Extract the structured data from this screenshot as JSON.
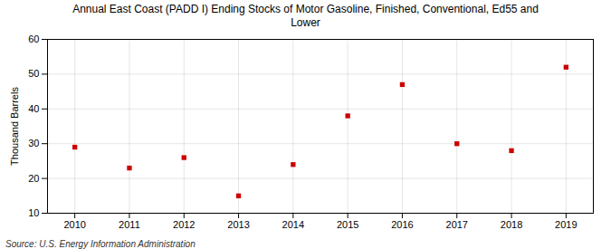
{
  "chart_data": {
    "type": "scatter",
    "title": "Annual East Coast (PADD I) Ending Stocks of Motor Gasoline, Finished, Conventional, Ed55 and\nLower",
    "x": [
      2010,
      2011,
      2012,
      2013,
      2014,
      2015,
      2016,
      2017,
      2018,
      2019
    ],
    "values": [
      29,
      23,
      26,
      15,
      24,
      38,
      47,
      30,
      28,
      52
    ],
    "ylabel": "Thousand Barrels",
    "xlim": [
      2009.5,
      2019.5
    ],
    "xticks": [
      2010,
      2011,
      2012,
      2013,
      2014,
      2015,
      2016,
      2017,
      2018,
      2019
    ],
    "ylim": [
      10,
      60
    ],
    "yticks": [
      10,
      20,
      30,
      40,
      50,
      60
    ],
    "color": "#cc0000",
    "marker": "square",
    "grid": true,
    "source": "Source: U.S. Energy Information Administration"
  }
}
